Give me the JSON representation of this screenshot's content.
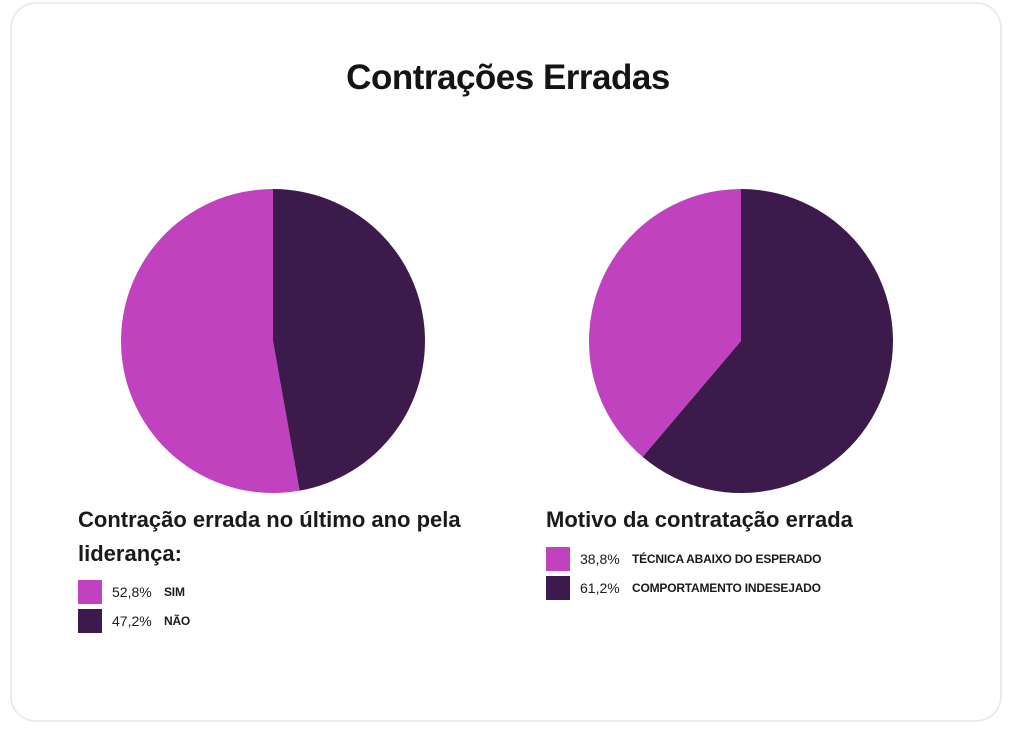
{
  "title": "Contrações Erradas",
  "colors": {
    "light": "#c042be",
    "dark": "#3d1a4c"
  },
  "chart_data": [
    {
      "type": "pie",
      "title": "Contração errada no último ano pela liderança:",
      "categories": [
        "SIM",
        "NÃO"
      ],
      "values": [
        52.8,
        47.2
      ],
      "value_labels": [
        "52,8%",
        "47,2%"
      ],
      "colors": [
        "#c042be",
        "#3d1a4c"
      ],
      "legend": "bottom"
    },
    {
      "type": "pie",
      "title": "Motivo da contratação errada",
      "categories": [
        "TÉCNICA ABAIXO DO ESPERADO",
        "COMPORTAMENTO INDESEJADO"
      ],
      "values": [
        38.8,
        61.2
      ],
      "value_labels": [
        "38,8%",
        "61,2%"
      ],
      "colors": [
        "#c042be",
        "#3d1a4c"
      ],
      "legend": "bottom"
    }
  ]
}
